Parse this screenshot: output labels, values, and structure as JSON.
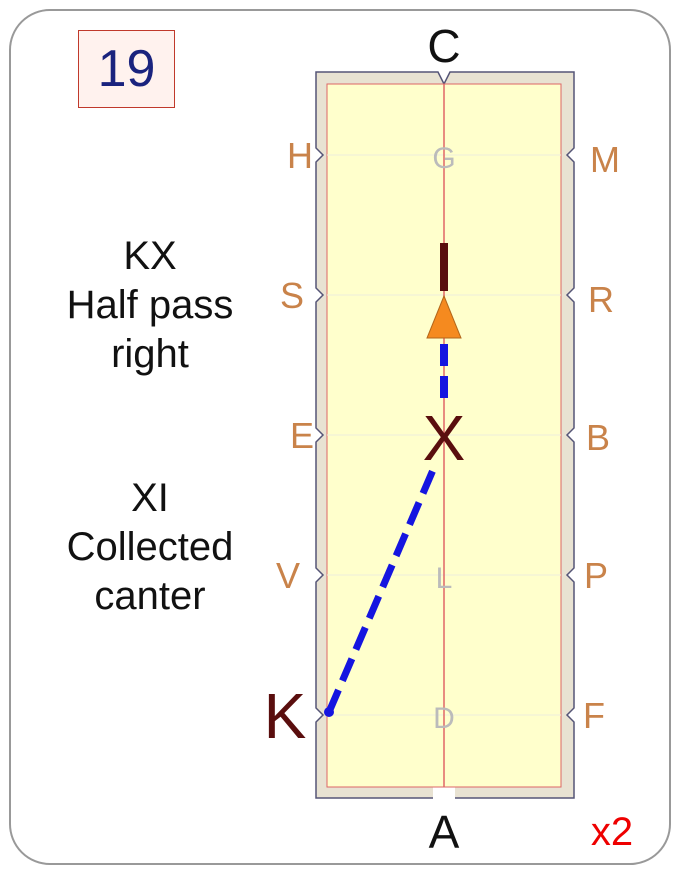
{
  "card": {
    "number": "19",
    "repeat": "x2",
    "movements": [
      {
        "title": "KX",
        "line1": "Half pass",
        "line2": "right"
      },
      {
        "title": "XI",
        "line1": "Collected",
        "line2": "canter"
      }
    ]
  },
  "arena": {
    "end_letters": {
      "top": "C",
      "bottom": "A"
    },
    "left_letters": [
      "H",
      "S",
      "E",
      "V",
      "K"
    ],
    "right_letters": [
      "M",
      "R",
      "B",
      "P",
      "F"
    ],
    "center_letters": [
      "G",
      "L",
      "D"
    ],
    "path_letters": {
      "start": "K",
      "mid": "X",
      "end": "I"
    }
  },
  "colors": {
    "arena_fill": "#ffffcc",
    "border_fill": "#e8e2d2",
    "centerline": "#e06666",
    "letter_orange": "#c9834a",
    "letter_gray": "#bbbbbb",
    "path_letter": "#5a0e0e",
    "route": "#1515e0",
    "arrow": "#f58a1f",
    "number_text": "#1a237e",
    "repeat_text": "#ee0000"
  }
}
